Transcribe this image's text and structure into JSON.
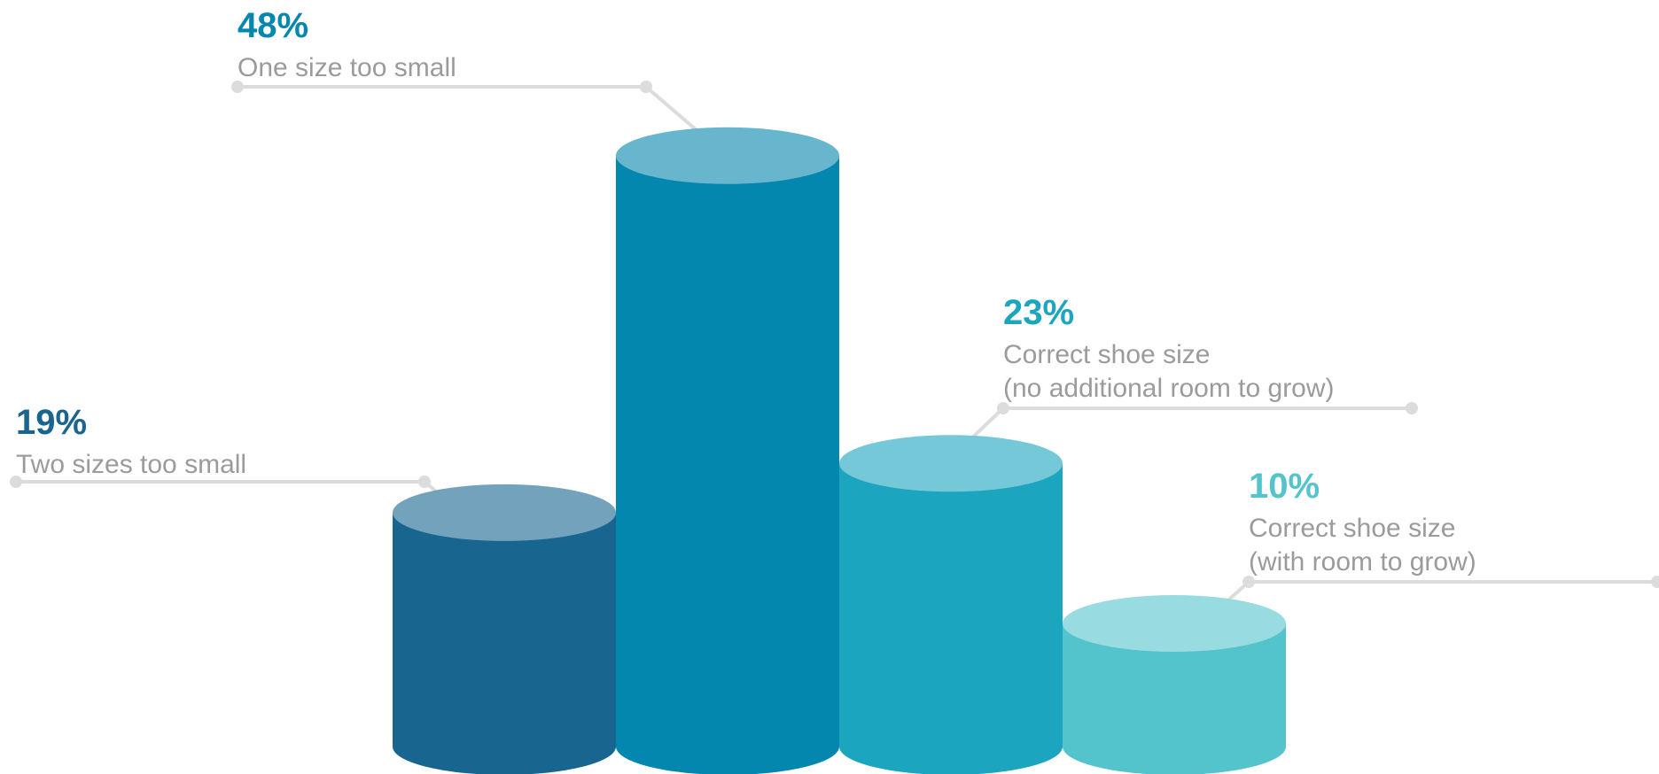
{
  "chart_data": {
    "type": "bar",
    "style": "3d-cylinder",
    "unit": "%",
    "grid": false,
    "legend": "none",
    "ylim": [
      0,
      48
    ],
    "series": [
      {
        "values": [
          19,
          48,
          23,
          10
        ],
        "labels": [
          "19%",
          "48%",
          "23%",
          "10%"
        ]
      }
    ],
    "categories": [
      {
        "label_lines": [
          "Two sizes too small"
        ]
      },
      {
        "label_lines": [
          "One size too small"
        ]
      },
      {
        "label_lines": [
          "Correct shoe size",
          "(no additional room to grow)"
        ]
      },
      {
        "label_lines": [
          "Correct shoe size",
          "(with room to grow)"
        ]
      }
    ],
    "colors": [
      {
        "body": "#186690",
        "top": "#73a2bc",
        "label": "#186690"
      },
      {
        "body": "#0387af",
        "top": "#68b6ce",
        "label": "#0387af"
      },
      {
        "body": "#1ca5bf",
        "top": "#75c8d8",
        "label": "#1ca5bf"
      },
      {
        "body": "#53c3cc",
        "top": "#98dbe0",
        "label": "#53c3cc"
      }
    ],
    "leader_color": "#dcdcdc"
  }
}
